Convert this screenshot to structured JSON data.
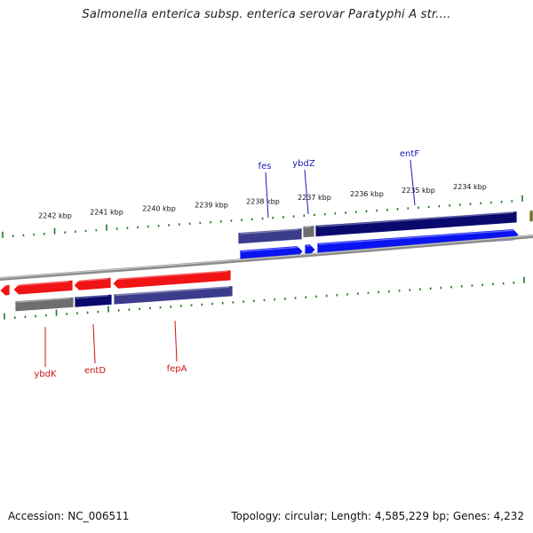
{
  "title": "Salmonella enterica subsp. enterica serovar Paratyphi A str....",
  "footer": {
    "accession": "Accession: NC_006511",
    "summary": "Topology: circular; Length: 4,585,229 bp; Genes: 4,232"
  },
  "colors": {
    "forward_gene": "#0a14f0",
    "forward_cds": "#0a0a6e",
    "reverse_gene": "#f01414",
    "reverse_cds": "#3c3c8c",
    "pseudo": "#6e6e6e",
    "tick": "#1e7a1e",
    "backbone": "#8c8c8c",
    "forward_label": "#1a1ab4",
    "reverse_label": "#c81414"
  },
  "ruler": {
    "top_labels": [
      "2242 kbp",
      "2241 kbp",
      "2240 kbp",
      "2239 kbp",
      "2238 kbp",
      "2237 kbp",
      "2236 kbp",
      "2235 kbp",
      "2234 kbp"
    ]
  },
  "genes": {
    "forward": [
      "fes",
      "ybdZ",
      "entF"
    ],
    "reverse": [
      "ybdK",
      "entD",
      "fepA"
    ]
  }
}
